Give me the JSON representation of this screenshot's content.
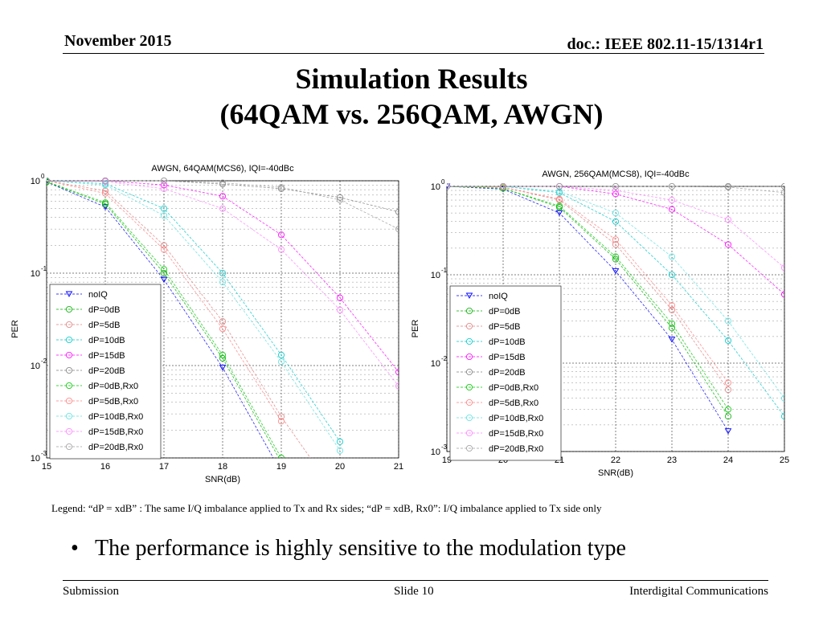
{
  "header": {
    "date": "November 2015",
    "doc": "doc.: IEEE 802.11-15/1314r1"
  },
  "title": {
    "line1": "Simulation Results",
    "line2": "(64QAM vs. 256QAM, AWGN)"
  },
  "legend_note": "Legend:  “dP = xdB” : The same I/Q imbalance applied to Tx and Rx sides;  “dP = xdB, Rx0”: I/Q imbalance applied to Tx side only",
  "bullet": "The performance is highly sensitive to the modulation type",
  "footer": {
    "left": "Submission",
    "center": "Slide 10",
    "right": "Interdigital Communications"
  },
  "chart_data": [
    {
      "type": "line",
      "title": "AWGN, 64QAM(MCS6), IQI=-40dBc",
      "xlabel": "SNR(dB)",
      "ylabel": "PER",
      "xlim": [
        15,
        21
      ],
      "ylim": [
        0.001,
        1
      ],
      "yscale": "log",
      "grid": true,
      "legend_position": "lower-left",
      "x": [
        15,
        16,
        17,
        18,
        19,
        20,
        21
      ],
      "series": [
        {
          "name": "noIQ",
          "color": "#0000ff",
          "marker": "triangle",
          "values": [
            0.97,
            0.52,
            0.085,
            0.0095,
            0.0007,
            null,
            null
          ]
        },
        {
          "name": "dP=0dB",
          "color": "#00b000",
          "marker": "circle",
          "values": [
            0.97,
            0.56,
            0.1,
            0.012,
            0.0009,
            null,
            null
          ]
        },
        {
          "name": "dP=5dB",
          "color": "#e08080",
          "marker": "circle",
          "values": [
            1.0,
            0.78,
            0.2,
            0.03,
            0.0028,
            0.00035,
            null
          ]
        },
        {
          "name": "dP=10dB",
          "color": "#00c8c8",
          "marker": "circle",
          "values": [
            1.0,
            0.93,
            0.5,
            0.1,
            0.013,
            0.0015,
            null
          ]
        },
        {
          "name": "dP=15dB",
          "color": "#ff00ff",
          "marker": "circle",
          "values": [
            1.0,
            1.0,
            0.9,
            0.68,
            0.26,
            0.054,
            0.0085
          ]
        },
        {
          "name": "dP=20dB",
          "color": "#808080",
          "marker": "circle",
          "values": [
            1.0,
            1.0,
            1.0,
            0.92,
            0.82,
            0.66,
            0.46
          ]
        },
        {
          "name": "dP=0dB,Rx0",
          "color": "#00c800",
          "marker": "circle",
          "values": [
            0.98,
            0.58,
            0.11,
            0.013,
            0.001,
            null,
            null
          ]
        },
        {
          "name": "dP=5dB,Rx0",
          "color": "#ff8080",
          "marker": "circle",
          "values": [
            1.0,
            0.73,
            0.18,
            0.025,
            0.0025,
            null,
            null
          ]
        },
        {
          "name": "dP=10dB,Rx0",
          "color": "#60e0e0",
          "marker": "circle",
          "values": [
            1.0,
            0.9,
            0.42,
            0.08,
            0.011,
            0.0012,
            null
          ]
        },
        {
          "name": "dP=15dB,Rx0",
          "color": "#ff80ff",
          "marker": "circle",
          "values": [
            1.0,
            0.98,
            0.82,
            0.5,
            0.18,
            0.04,
            0.006
          ]
        },
        {
          "name": "dP=20dB,Rx0",
          "color": "#a0a0a0",
          "marker": "circle",
          "values": [
            1.0,
            1.0,
            1.0,
            0.95,
            0.85,
            0.62,
            0.3
          ]
        }
      ]
    },
    {
      "type": "line",
      "title": "AWGN, 256QAM(MCS8), IQI=-40dBc",
      "xlabel": "SNR(dB)",
      "ylabel": "PER",
      "xlim": [
        19,
        25
      ],
      "ylim": [
        0.001,
        1
      ],
      "yscale": "log",
      "grid": true,
      "legend_position": "lower-left",
      "x": [
        19,
        20,
        21,
        22,
        23,
        24,
        25
      ],
      "series": [
        {
          "name": "noIQ",
          "color": "#0000ff",
          "marker": "triangle",
          "values": [
            1.0,
            0.93,
            0.5,
            0.11,
            0.0185,
            0.0017,
            null
          ]
        },
        {
          "name": "dP=0dB",
          "color": "#00b000",
          "marker": "circle",
          "values": [
            1.0,
            0.95,
            0.58,
            0.15,
            0.025,
            0.0025,
            null
          ]
        },
        {
          "name": "dP=5dB",
          "color": "#e08080",
          "marker": "circle",
          "values": [
            1.0,
            0.98,
            0.7,
            0.22,
            0.04,
            0.005,
            null
          ]
        },
        {
          "name": "dP=10dB",
          "color": "#00c8c8",
          "marker": "circle",
          "values": [
            1.0,
            1.0,
            0.85,
            0.4,
            0.1,
            0.018,
            0.0025
          ]
        },
        {
          "name": "dP=15dB",
          "color": "#ff00ff",
          "marker": "circle",
          "values": [
            1.0,
            1.0,
            1.0,
            0.82,
            0.55,
            0.22,
            0.06
          ]
        },
        {
          "name": "dP=20dB",
          "color": "#808080",
          "marker": "circle",
          "values": [
            1.0,
            1.0,
            1.0,
            1.0,
            1.0,
            1.0,
            1.0
          ]
        },
        {
          "name": "dP=0dB,Rx0",
          "color": "#00c800",
          "marker": "circle",
          "values": [
            1.0,
            0.95,
            0.6,
            0.16,
            0.028,
            0.003,
            null
          ]
        },
        {
          "name": "dP=5dB,Rx0",
          "color": "#ff8080",
          "marker": "circle",
          "values": [
            1.0,
            0.98,
            0.72,
            0.25,
            0.045,
            0.006,
            null
          ]
        },
        {
          "name": "dP=10dB,Rx0",
          "color": "#60e0e0",
          "marker": "circle",
          "values": [
            1.0,
            1.0,
            0.88,
            0.5,
            0.16,
            0.03,
            0.004
          ]
        },
        {
          "name": "dP=15dB,Rx0",
          "color": "#ff80ff",
          "marker": "circle",
          "values": [
            1.0,
            1.0,
            1.0,
            0.9,
            0.7,
            0.42,
            0.12
          ]
        },
        {
          "name": "dP=20dB,Rx0",
          "color": "#a0a0a0",
          "marker": "circle",
          "values": [
            1.0,
            1.0,
            1.0,
            1.0,
            1.0,
            0.98,
            0.85
          ]
        }
      ]
    }
  ]
}
